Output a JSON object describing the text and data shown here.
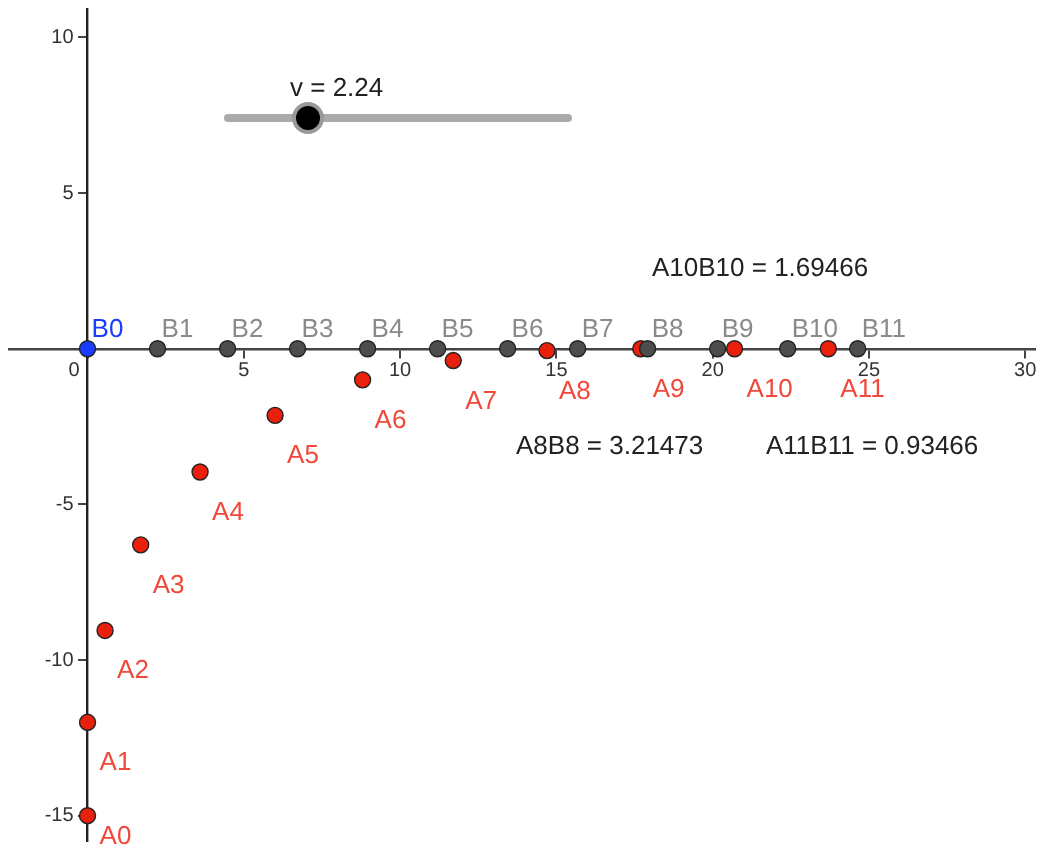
{
  "chart_data": {
    "type": "scatter",
    "xlim": [
      -2.5,
      30.3
    ],
    "ylim": [
      -15.8,
      10.9
    ],
    "xticks": [
      0,
      5,
      10,
      15,
      20,
      25,
      30
    ],
    "yticks": [
      -15,
      -10,
      -5,
      5,
      10
    ],
    "grid": false,
    "legend": false,
    "marker": "circle",
    "series": [
      {
        "x": [
          0,
          2.24,
          4.48,
          6.72,
          8.96,
          11.2,
          13.44,
          15.68,
          17.92,
          20.16,
          22.4,
          24.64
        ],
        "values": [
          0,
          0,
          0,
          0,
          0,
          0,
          0,
          0,
          0,
          0,
          0,
          0
        ],
        "colors": [
          "#1a3cff",
          "#4d4d4d",
          "#4d4d4d",
          "#4d4d4d",
          "#4d4d4d",
          "#4d4d4d",
          "#4d4d4d",
          "#4d4d4d",
          "#4d4d4d",
          "#4d4d4d",
          "#4d4d4d",
          "#4d4d4d"
        ],
        "value_labels": [
          "B0",
          "B1",
          "B2",
          "B3",
          "B4",
          "B5",
          "B6",
          "B7",
          "B8",
          "B9",
          "B10",
          "B11"
        ]
      },
      {
        "x": [
          0,
          0,
          0.56,
          1.7,
          3.6,
          6.0,
          8.8,
          11.7,
          14.7,
          17.7,
          20.7,
          23.7
        ],
        "values": [
          -15,
          -12,
          -9.05,
          -6.3,
          -3.96,
          -2.14,
          -1.0,
          -0.38,
          -0.06,
          0,
          0,
          0
        ],
        "colors": [
          "#e8200c",
          "#e8200c",
          "#e8200c",
          "#e8200c",
          "#e8200c",
          "#e8200c",
          "#e8200c",
          "#e8200c",
          "#e8200c",
          "#e8200c",
          "#e8200c",
          "#e8200c"
        ],
        "value_labels": [
          "A0",
          "A1",
          "A2",
          "A3",
          "A4",
          "A5",
          "A6",
          "A7",
          "A8",
          "A9",
          "A10",
          "A11"
        ]
      }
    ],
    "annotations": [
      "v = 2.24",
      "A10B10 = 1.69466",
      "A8B8 = 3.21473",
      "A11B11 = 0.93466"
    ]
  }
}
